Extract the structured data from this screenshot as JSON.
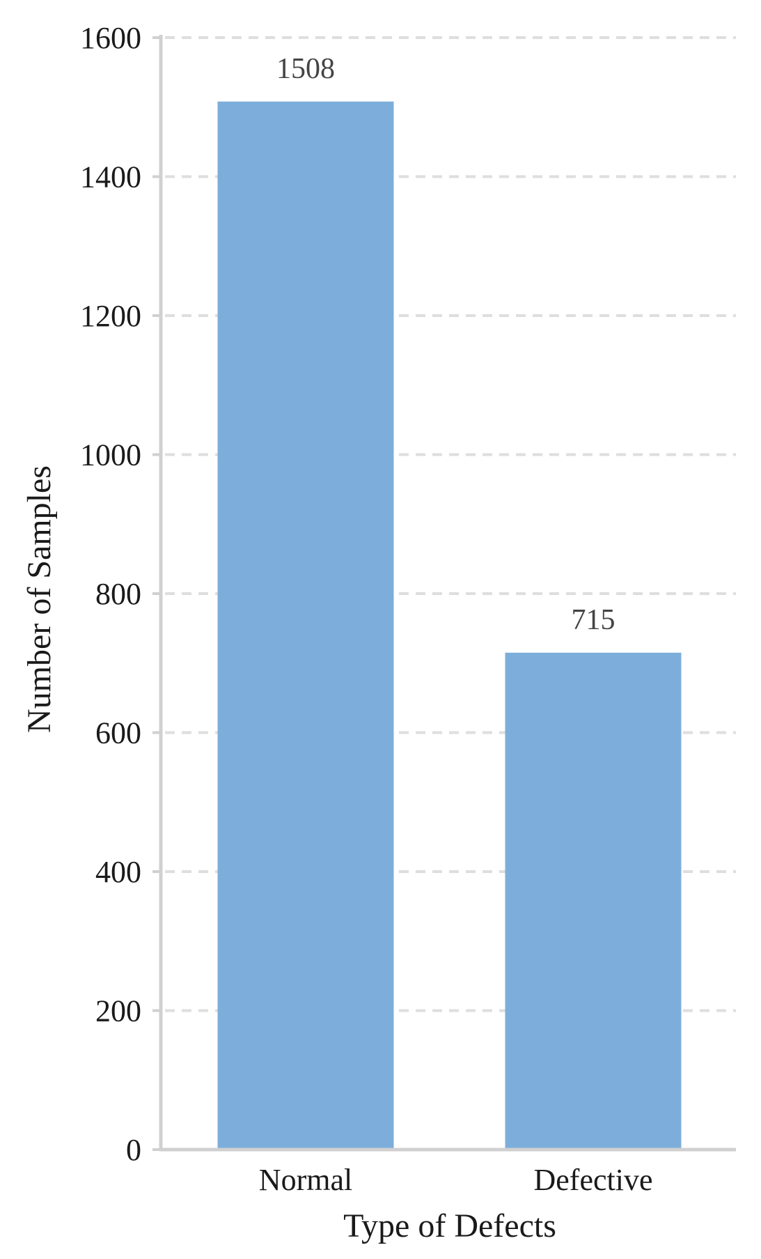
{
  "chart_data": {
    "type": "bar",
    "categories": [
      "Normal",
      "Defective"
    ],
    "values": [
      1508,
      715
    ],
    "data_labels": [
      "1508",
      "715"
    ],
    "xlabel": "Type of Defects",
    "ylabel": "Number of Samples",
    "ylim": [
      0,
      1600
    ],
    "yticks": [
      0,
      200,
      400,
      600,
      800,
      1000,
      1200,
      1400,
      1600
    ],
    "ytick_labels": [
      "0",
      "200",
      "400",
      "600",
      "800",
      "1000",
      "1200",
      "1400",
      "1600"
    ],
    "grid": true,
    "legend": "none",
    "bar_color": "#7daedb"
  }
}
